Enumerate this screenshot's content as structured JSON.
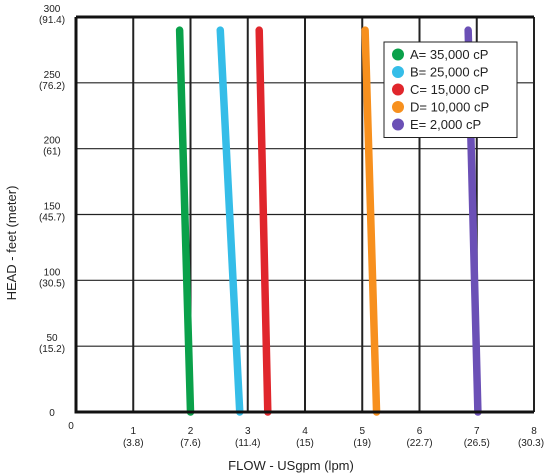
{
  "chart_data": {
    "type": "line",
    "xlabel": "FLOW - USgpm (lpm)",
    "ylabel": "HEAD - feet (meter)",
    "xlim": [
      0,
      8
    ],
    "ylim": [
      0,
      300
    ],
    "x_ticks": [
      {
        "value": 0,
        "label": "0",
        "sub": ""
      },
      {
        "value": 1,
        "label": "1",
        "sub": "(3.8)"
      },
      {
        "value": 2,
        "label": "2",
        "sub": "(7.6)"
      },
      {
        "value": 3,
        "label": "3",
        "sub": "(11.4)"
      },
      {
        "value": 4,
        "label": "4",
        "sub": "(15)"
      },
      {
        "value": 5,
        "label": "5",
        "sub": "(19)"
      },
      {
        "value": 6,
        "label": "6",
        "sub": "(22.7)"
      },
      {
        "value": 7,
        "label": "7",
        "sub": "(26.5)"
      },
      {
        "value": 8,
        "label": "8",
        "sub": "(30.3)"
      }
    ],
    "y_ticks": [
      {
        "value": 0,
        "label": "0",
        "sub": ""
      },
      {
        "value": 50,
        "label": "50",
        "sub": "(15.2)"
      },
      {
        "value": 100,
        "label": "100",
        "sub": "(30.5)"
      },
      {
        "value": 150,
        "label": "150",
        "sub": "(45.7)"
      },
      {
        "value": 200,
        "label": "200",
        "sub": "(61)"
      },
      {
        "value": 250,
        "label": "250",
        "sub": "(76.2)"
      },
      {
        "value": 300,
        "label": "300",
        "sub": "(91.4)"
      }
    ],
    "grid": true,
    "legend_position": "top-right",
    "series": [
      {
        "name": "A= 35,000 cP",
        "color": "#0aa14a",
        "x": [
          1.81,
          2.0
        ],
        "y": [
          290,
          0
        ]
      },
      {
        "name": "B= 25,000 cP",
        "color": "#35bde8",
        "x": [
          2.52,
          2.86
        ],
        "y": [
          290,
          0
        ]
      },
      {
        "name": "C= 15,000 cP",
        "color": "#e0262c",
        "x": [
          3.2,
          3.35
        ],
        "y": [
          290,
          0
        ]
      },
      {
        "name": "D= 10,000 cP",
        "color": "#f7901e",
        "x": [
          5.05,
          5.25
        ],
        "y": [
          290,
          0
        ]
      },
      {
        "name": "E= 2,000 cP",
        "color": "#6b50b6",
        "x": [
          6.85,
          7.02
        ],
        "y": [
          290,
          0
        ]
      }
    ]
  }
}
